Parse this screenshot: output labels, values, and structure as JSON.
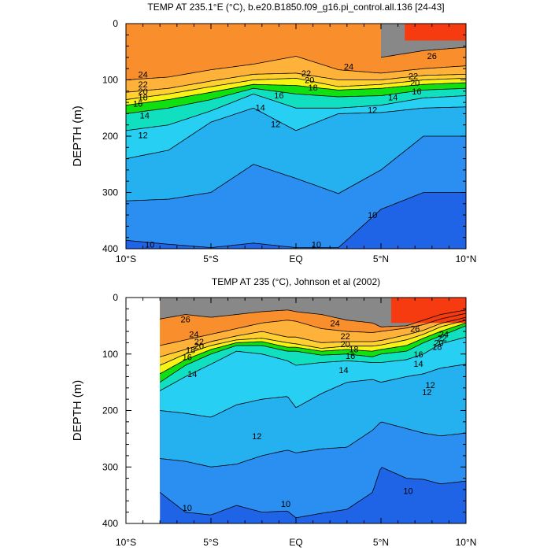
{
  "chart_data": [
    {
      "type": "contour",
      "title": "TEMP AT 235.1°E (°C), b.e20.B1850.f09_g16.pi_control.all.136 [24-43]",
      "xlabel": "",
      "ylabel": "DEPTH (m)",
      "xlim": [
        -10,
        10
      ],
      "ylim": [
        0,
        400
      ],
      "y_inverted": true,
      "x_ticks": [
        -10,
        -5,
        0,
        5,
        10
      ],
      "x_tick_labels": [
        "10°S",
        "5°S",
        "EQ",
        "5°N",
        "10°N"
      ],
      "y_ticks": [
        0,
        100,
        200,
        300,
        400
      ],
      "y_tick_labels": [
        "0",
        "100",
        "200",
        "300",
        "400"
      ],
      "data_extent_x": [
        -10,
        10
      ],
      "contour_interval": 1,
      "isotherm_depths": {
        "x": [
          -10,
          -7.5,
          -5,
          -2.5,
          0,
          2.5,
          5,
          7.5,
          10
        ],
        "10": [
          385,
          392,
          398,
          390,
          398,
          398,
          330,
          300,
          300
        ],
        "11": [
          315,
          312,
          300,
          250,
          275,
          302,
          260,
          200,
          200
        ],
        "12": [
          240,
          225,
          175,
          150,
          190,
          160,
          158,
          150,
          148
        ],
        "14": [
          190,
          180,
          155,
          125,
          150,
          150,
          145,
          132,
          128
        ],
        "16": [
          160,
          150,
          135,
          115,
          125,
          130,
          128,
          118,
          115
        ],
        "18": [
          145,
          135,
          122,
          108,
          110,
          118,
          115,
          108,
          105
        ],
        "20": [
          135,
          125,
          112,
          100,
          97,
          112,
          108,
          100,
          97
        ],
        "22": [
          122,
          115,
          102,
          90,
          88,
          100,
          100,
          92,
          90
        ],
        "24": [
          100,
          95,
          82,
          72,
          58,
          82,
          88,
          80,
          75
        ],
        "26": [
          null,
          null,
          null,
          null,
          null,
          null,
          60,
          48,
          42
        ]
      },
      "warm_pool_28": {
        "x_range": [
          6.4,
          10
        ],
        "depth_range": [
          0,
          30
        ]
      },
      "contour_labels": [
        "24",
        "22",
        "20",
        "18",
        "16",
        "14",
        "12",
        "12",
        "10",
        "22",
        "20",
        "18",
        "16",
        "14",
        "12",
        "24",
        "22",
        "20",
        "16",
        "14",
        "26",
        "10",
        "10"
      ]
    },
    {
      "type": "contour",
      "title": "TEMP AT 235 (°C), Johnson et al (2002)",
      "xlabel": "",
      "ylabel": "DEPTH (m)",
      "xlim": [
        -10,
        10
      ],
      "ylim": [
        0,
        400
      ],
      "y_inverted": true,
      "x_ticks": [
        -10,
        -5,
        0,
        5,
        10
      ],
      "x_tick_labels": [
        "10°S",
        "5°S",
        "EQ",
        "5°N",
        "10°N"
      ],
      "y_ticks": [
        0,
        100,
        200,
        300,
        400
      ],
      "y_tick_labels": [
        "0",
        "100",
        "200",
        "300",
        "400"
      ],
      "data_extent_x": [
        -8,
        10
      ],
      "contour_interval": 1,
      "isotherm_depths": {
        "x": [
          -8,
          -6.5,
          -5,
          -3.5,
          -2,
          -0.5,
          0,
          1.5,
          3,
          4.5,
          5,
          6.5,
          7.5,
          8.5,
          10
        ],
        "10": [
          345,
          380,
          385,
          368,
          380,
          378,
          390,
          382,
          375,
          345,
          300,
          320,
          322,
          330,
          325
        ],
        "11": [
          285,
          290,
          300,
          295,
          280,
          270,
          275,
          268,
          265,
          235,
          220,
          232,
          240,
          245,
          240
        ],
        "12": [
          200,
          205,
          212,
          190,
          180,
          175,
          195,
          170,
          150,
          145,
          150,
          140,
          135,
          125,
          118
        ],
        "14": [
          165,
          140,
          118,
          95,
          100,
          112,
          120,
          115,
          112,
          115,
          115,
          110,
          100,
          82,
          70
        ],
        "16": [
          150,
          120,
          100,
          85,
          85,
          95,
          95,
          102,
          100,
          105,
          100,
          95,
          80,
          68,
          50
        ],
        "18": [
          135,
          110,
          92,
          80,
          78,
          88,
          88,
          95,
          92,
          95,
          92,
          85,
          72,
          60,
          45
        ],
        "20": [
          120,
          100,
          85,
          75,
          72,
          80,
          82,
          90,
          86,
          86,
          84,
          75,
          65,
          52,
          40
        ],
        "22": [
          105,
          92,
          78,
          68,
          60,
          70,
          70,
          80,
          78,
          78,
          76,
          66,
          58,
          46,
          35
        ],
        "24": [
          85,
          75,
          65,
          55,
          45,
          40,
          42,
          55,
          60,
          62,
          60,
          54,
          48,
          38,
          28
        ],
        "26": [
          38,
          30,
          35,
          30,
          25,
          22,
          25,
          30,
          40,
          45,
          52,
          50,
          40,
          30,
          22
        ]
      },
      "warm_pool_28": {
        "x_range": [
          5.6,
          10
        ],
        "depth_range": [
          0,
          45
        ]
      },
      "contour_labels": [
        "26",
        "24",
        "22",
        "20",
        "18",
        "16",
        "14",
        "24",
        "22",
        "20",
        "18",
        "16",
        "14",
        "12",
        "12",
        "10",
        "10",
        "26",
        "24",
        "22",
        "20",
        "18",
        "16",
        "14",
        "12",
        "10"
      ]
    }
  ]
}
